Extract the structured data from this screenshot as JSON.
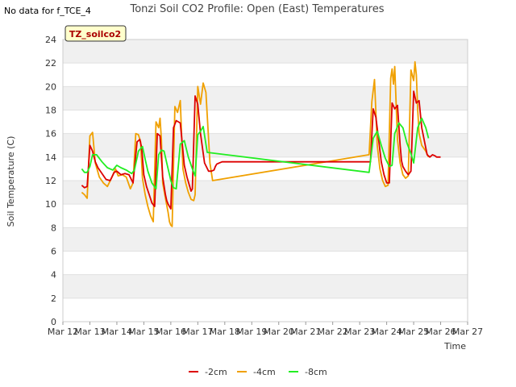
{
  "note": "No data for f_TCE_4",
  "chart_data": {
    "type": "line",
    "title": "Tonzi Soil CO2 Profile: Open (East) Temperatures",
    "xlabel": "Time",
    "ylabel": "Soil Temperature (C)",
    "site_label": "TZ_soilco2",
    "ylim": [
      0,
      24
    ],
    "yticks": [
      0,
      2,
      4,
      6,
      8,
      10,
      12,
      14,
      16,
      18,
      20,
      22,
      24
    ],
    "xlim": [
      12,
      27
    ],
    "xticks": [
      {
        "value": 12,
        "label": "Mar 12"
      },
      {
        "value": 13,
        "label": "Mar 13"
      },
      {
        "value": 14,
        "label": "Mar 14"
      },
      {
        "value": 15,
        "label": "Mar 15"
      },
      {
        "value": 16,
        "label": "Mar 16"
      },
      {
        "value": 17,
        "label": "Mar 17"
      },
      {
        "value": 18,
        "label": "Mar 18"
      },
      {
        "value": 19,
        "label": "Mar 19"
      },
      {
        "value": 20,
        "label": "Mar 20"
      },
      {
        "value": 21,
        "label": "Mar 21"
      },
      {
        "value": 22,
        "label": "Mar 22"
      },
      {
        "value": 23,
        "label": "Mar 23"
      },
      {
        "value": 24,
        "label": "Mar 24"
      },
      {
        "value": 25,
        "label": "Mar 25"
      },
      {
        "value": 26,
        "label": "Mar 26"
      },
      {
        "value": 27,
        "label": "Mar 27"
      }
    ],
    "x_unit": "day of March",
    "grid": true,
    "legend_position": "bottom",
    "series": [
      {
        "name": "-2cm",
        "color": "#dd0000",
        "x": [
          12.7,
          12.8,
          12.9,
          13.0,
          13.1,
          13.2,
          13.3,
          13.45,
          13.6,
          13.75,
          13.9,
          14.0,
          14.15,
          14.3,
          14.45,
          14.6,
          14.75,
          14.85,
          14.92,
          15.0,
          15.1,
          15.2,
          15.3,
          15.4,
          15.5,
          15.6,
          15.7,
          15.8,
          15.85,
          15.9,
          16.0,
          16.1,
          16.2,
          16.35,
          16.5,
          16.6,
          16.7,
          16.75,
          16.8,
          16.9,
          17.0,
          17.1,
          17.25,
          17.4,
          17.5,
          17.6,
          17.65,
          17.7,
          17.8,
          17.9,
          18.0,
          18.15,
          18.3,
          23.4,
          23.5,
          23.6,
          23.7,
          23.8,
          23.9,
          24.0,
          24.1,
          24.2,
          24.3,
          24.4,
          24.5,
          24.55,
          24.6,
          24.7,
          24.8,
          24.9,
          25.0,
          25.1,
          25.2,
          25.3,
          25.5,
          25.6,
          25.7,
          25.8,
          25.85,
          25.9,
          26.0
        ],
        "y": [
          11.6,
          11.4,
          11.5,
          15.0,
          14.5,
          13.6,
          13.1,
          12.6,
          12.1,
          12.0,
          12.7,
          12.8,
          12.5,
          12.6,
          12.5,
          11.8,
          15.3,
          15.5,
          14.8,
          12.5,
          11.5,
          10.8,
          10.1,
          9.8,
          16.0,
          15.8,
          12.3,
          10.8,
          10.3,
          10.0,
          9.6,
          16.5,
          17.1,
          16.9,
          13.3,
          12.3,
          11.5,
          11.1,
          11.3,
          19.2,
          18.5,
          16.0,
          13.5,
          12.8,
          12.8,
          12.9,
          13.2,
          13.4,
          13.5,
          13.6,
          13.6,
          13.6,
          13.6,
          13.6,
          18.1,
          17.4,
          15.5,
          13.6,
          12.5,
          11.8,
          11.8,
          18.6,
          18.1,
          18.4,
          15.0,
          13.7,
          13.2,
          12.8,
          12.5,
          12.8,
          19.6,
          18.6,
          18.8,
          16.5,
          14.2,
          14.0,
          14.2,
          14.1,
          14.0,
          14.0,
          14.0
        ]
      },
      {
        "name": "-4cm",
        "color": "#f0a000",
        "x": [
          12.7,
          12.8,
          12.9,
          13.0,
          13.1,
          13.2,
          13.35,
          13.5,
          13.65,
          13.8,
          13.95,
          14.05,
          14.2,
          14.35,
          14.5,
          14.6,
          14.7,
          14.8,
          14.88,
          14.95,
          15.05,
          15.15,
          15.25,
          15.35,
          15.45,
          15.55,
          15.6,
          15.65,
          15.7,
          15.8,
          15.9,
          15.95,
          16.0,
          16.05,
          16.15,
          16.25,
          16.35,
          16.45,
          16.55,
          16.65,
          16.75,
          16.85,
          16.9,
          17.0,
          17.1,
          17.2,
          17.3,
          17.45,
          17.55,
          23.35,
          23.45,
          23.55,
          23.65,
          23.75,
          23.85,
          23.95,
          24.05,
          24.15,
          24.2,
          24.25,
          24.3,
          24.4,
          24.5,
          24.6,
          24.7,
          24.8,
          24.9,
          25.0,
          25.05,
          25.1,
          25.15,
          25.2,
          25.3,
          25.45,
          25.55
        ],
        "y": [
          11.0,
          10.8,
          10.5,
          15.8,
          16.1,
          13.5,
          12.3,
          11.8,
          11.5,
          12.2,
          13.0,
          12.4,
          12.5,
          12.3,
          11.3,
          11.8,
          16.0,
          15.9,
          15.3,
          12.2,
          10.8,
          9.8,
          9.0,
          8.5,
          17.0,
          16.5,
          17.3,
          15.5,
          11.8,
          10.5,
          9.3,
          8.5,
          8.2,
          8.1,
          18.3,
          17.8,
          18.8,
          13.0,
          11.8,
          11.0,
          10.4,
          10.3,
          10.8,
          20.0,
          18.5,
          20.3,
          19.5,
          13.5,
          12.0,
          14.2,
          18.7,
          20.6,
          15.0,
          13.0,
          12.0,
          11.5,
          11.6,
          20.7,
          21.5,
          20.2,
          21.7,
          15.5,
          13.5,
          12.5,
          12.2,
          12.4,
          21.4,
          20.5,
          22.1,
          21.0,
          18.0,
          16.0,
          15.0,
          14.5,
          14.0
        ]
      },
      {
        "name": "-8cm",
        "color": "#22ee22",
        "x": [
          12.7,
          12.8,
          12.9,
          13.0,
          13.1,
          13.25,
          13.45,
          13.65,
          13.85,
          14.0,
          14.15,
          14.35,
          14.55,
          14.65,
          14.8,
          14.95,
          15.05,
          15.15,
          15.3,
          15.45,
          15.55,
          15.65,
          15.75,
          15.85,
          16.0,
          16.1,
          16.2,
          16.35,
          16.5,
          16.65,
          16.8,
          16.9,
          17.0,
          17.1,
          17.2,
          17.35,
          23.35,
          23.5,
          23.65,
          23.8,
          23.95,
          24.1,
          24.2,
          24.3,
          24.45,
          24.6,
          24.75,
          24.9,
          25.0,
          25.15,
          25.3,
          25.45,
          25.55
        ],
        "y": [
          13.0,
          12.7,
          12.7,
          13.2,
          14.2,
          14.2,
          13.6,
          13.1,
          12.9,
          13.3,
          13.1,
          12.9,
          12.6,
          12.9,
          14.5,
          14.9,
          13.8,
          12.8,
          11.8,
          11.3,
          14.2,
          14.6,
          14.5,
          13.5,
          12.0,
          11.4,
          11.3,
          15.1,
          15.4,
          14.0,
          13.0,
          12.4,
          15.9,
          16.2,
          16.6,
          14.4,
          12.7,
          15.6,
          16.2,
          15.0,
          13.9,
          13.2,
          13.3,
          16.0,
          16.9,
          16.5,
          15.2,
          14.3,
          13.5,
          16.5,
          17.3,
          16.5,
          15.6
        ]
      }
    ]
  }
}
